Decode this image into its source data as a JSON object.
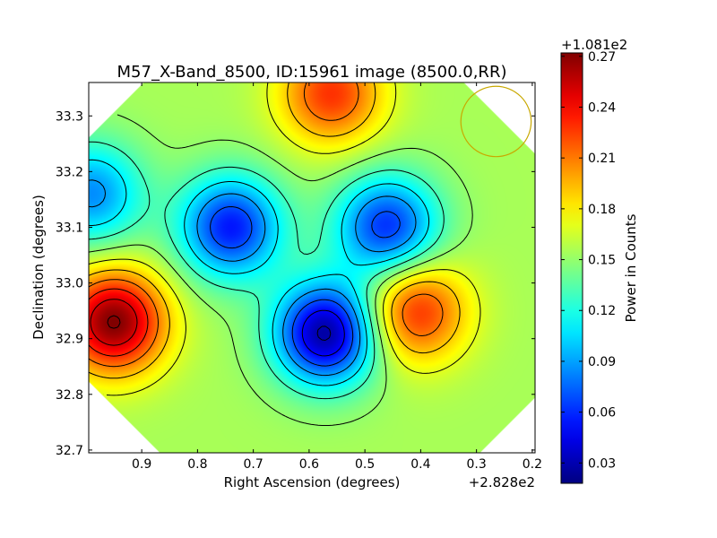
{
  "chart_data": {
    "type": "heatmap",
    "title": "M57_X-Band_8500, ID:15961 image (8500.0,RR)",
    "xlabel": "Right Ascension (degrees)",
    "ylabel": "Declination (degrees)",
    "x_offset_label": "+2.828e2",
    "xlim": [
      0.995,
      0.195
    ],
    "ylim": [
      32.695,
      33.36
    ],
    "x_ticks": [
      0.9,
      0.8,
      0.7,
      0.6,
      0.5,
      0.4,
      0.3,
      0.2
    ],
    "x_tick_labels": [
      "0.9",
      "0.8",
      "0.7",
      "0.6",
      "0.5",
      "0.4",
      "0.3",
      "0.2"
    ],
    "y_ticks": [
      32.7,
      32.8,
      32.9,
      33.0,
      33.1,
      33.2,
      33.3
    ],
    "y_tick_labels": [
      "32.7",
      "32.8",
      "32.9",
      "33.0",
      "33.1",
      "33.2",
      "33.3"
    ],
    "colorbar": {
      "label": "Power in Counts",
      "offset_label": "+1.081e2",
      "range": [
        0.018,
        0.272
      ],
      "ticks": [
        0.03,
        0.06,
        0.09,
        0.12,
        0.15,
        0.18,
        0.21,
        0.24,
        0.27
      ],
      "tick_labels": [
        "0.03",
        "0.06",
        "0.09",
        "0.12",
        "0.15",
        "0.18",
        "0.21",
        "0.24",
        "0.27"
      ],
      "colormap": "jet"
    },
    "background_level": 0.155,
    "features": [
      {
        "kind": "peak",
        "ra": 0.95,
        "dec": 32.93,
        "value": 0.272
      },
      {
        "kind": "peak",
        "ra": 0.41,
        "dec": 32.95,
        "value": 0.232
      },
      {
        "kind": "peak",
        "ra": 0.56,
        "dec": 33.34,
        "value": 0.228
      },
      {
        "kind": "minimum",
        "ra": 0.57,
        "dec": 32.91,
        "value": 0.025
      },
      {
        "kind": "minimum",
        "ra": 0.74,
        "dec": 33.1,
        "value": 0.055
      },
      {
        "kind": "minimum",
        "ra": 0.46,
        "dec": 33.1,
        "value": 0.06
      },
      {
        "kind": "minimum",
        "ra": 0.99,
        "dec": 33.16,
        "value": 0.085
      }
    ],
    "beam": {
      "ra": 0.265,
      "dec": 33.29,
      "radius_deg": 0.063,
      "color": "#c8a800"
    },
    "grid": false
  }
}
